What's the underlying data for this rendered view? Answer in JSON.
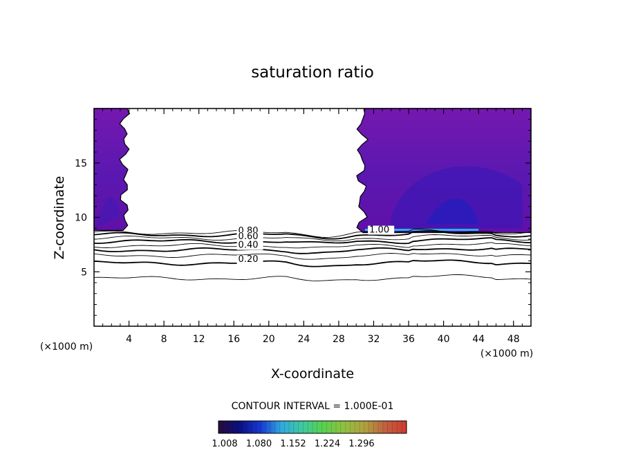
{
  "chart_data": {
    "type": "contour",
    "title": "saturation ratio",
    "xlabel": "X-coordinate",
    "ylabel": "Z-coordinate",
    "x_unit": "(×1000 m)",
    "z_unit": "(×1000 m)",
    "xlim": [
      0,
      50
    ],
    "ylim": [
      0,
      20
    ],
    "x_ticks": [
      4,
      8,
      12,
      16,
      20,
      24,
      28,
      32,
      36,
      40,
      44,
      48
    ],
    "y_ticks": [
      5,
      10,
      15
    ],
    "contour_interval_text": "CONTOUR INTERVAL = 1.000E-01",
    "contour_levels": [
      0.1,
      0.2,
      0.3,
      0.4,
      0.5,
      0.6,
      0.7,
      0.8,
      0.9,
      1.0
    ],
    "contour_labels": [
      {
        "text": "0.80",
        "x": 16.5,
        "z": 8.5
      },
      {
        "text": "0.60",
        "x": 16.5,
        "z": 8.0
      },
      {
        "text": "0.40",
        "x": 16.5,
        "z": 7.2
      },
      {
        "text": "0.20",
        "x": 16.5,
        "z": 5.9
      },
      {
        "text": "1.00",
        "x": 31.5,
        "z": 8.6
      }
    ],
    "contour_heights_km": [
      {
        "level": 0.1,
        "z": 4.4
      },
      {
        "level": 0.2,
        "z": 5.8
      },
      {
        "level": 0.3,
        "z": 6.5
      },
      {
        "level": 0.4,
        "z": 7.0
      },
      {
        "level": 0.5,
        "z": 7.4
      },
      {
        "level": 0.6,
        "z": 7.8
      },
      {
        "level": 0.7,
        "z": 8.1
      },
      {
        "level": 0.8,
        "z": 8.4
      },
      {
        "level": 0.9,
        "z": 8.6
      }
    ],
    "supersaturated_regions": [
      {
        "x_start": 0,
        "x_end": 4,
        "z_bottom": 8.8,
        "z_top": 20
      },
      {
        "x_start": 30,
        "x_end": 50,
        "z_bottom": 8.6,
        "z_top": 20
      }
    ],
    "colorbar": {
      "ticks": [
        "1.008",
        "1.080",
        "1.152",
        "1.224",
        "1.296"
      ],
      "colors": [
        "#2a0a3a",
        "#0a1080",
        "#1838d0",
        "#30a8e0",
        "#40c8a0",
        "#58d050",
        "#90c040",
        "#b0a040",
        "#c06040",
        "#d03a30"
      ]
    }
  }
}
